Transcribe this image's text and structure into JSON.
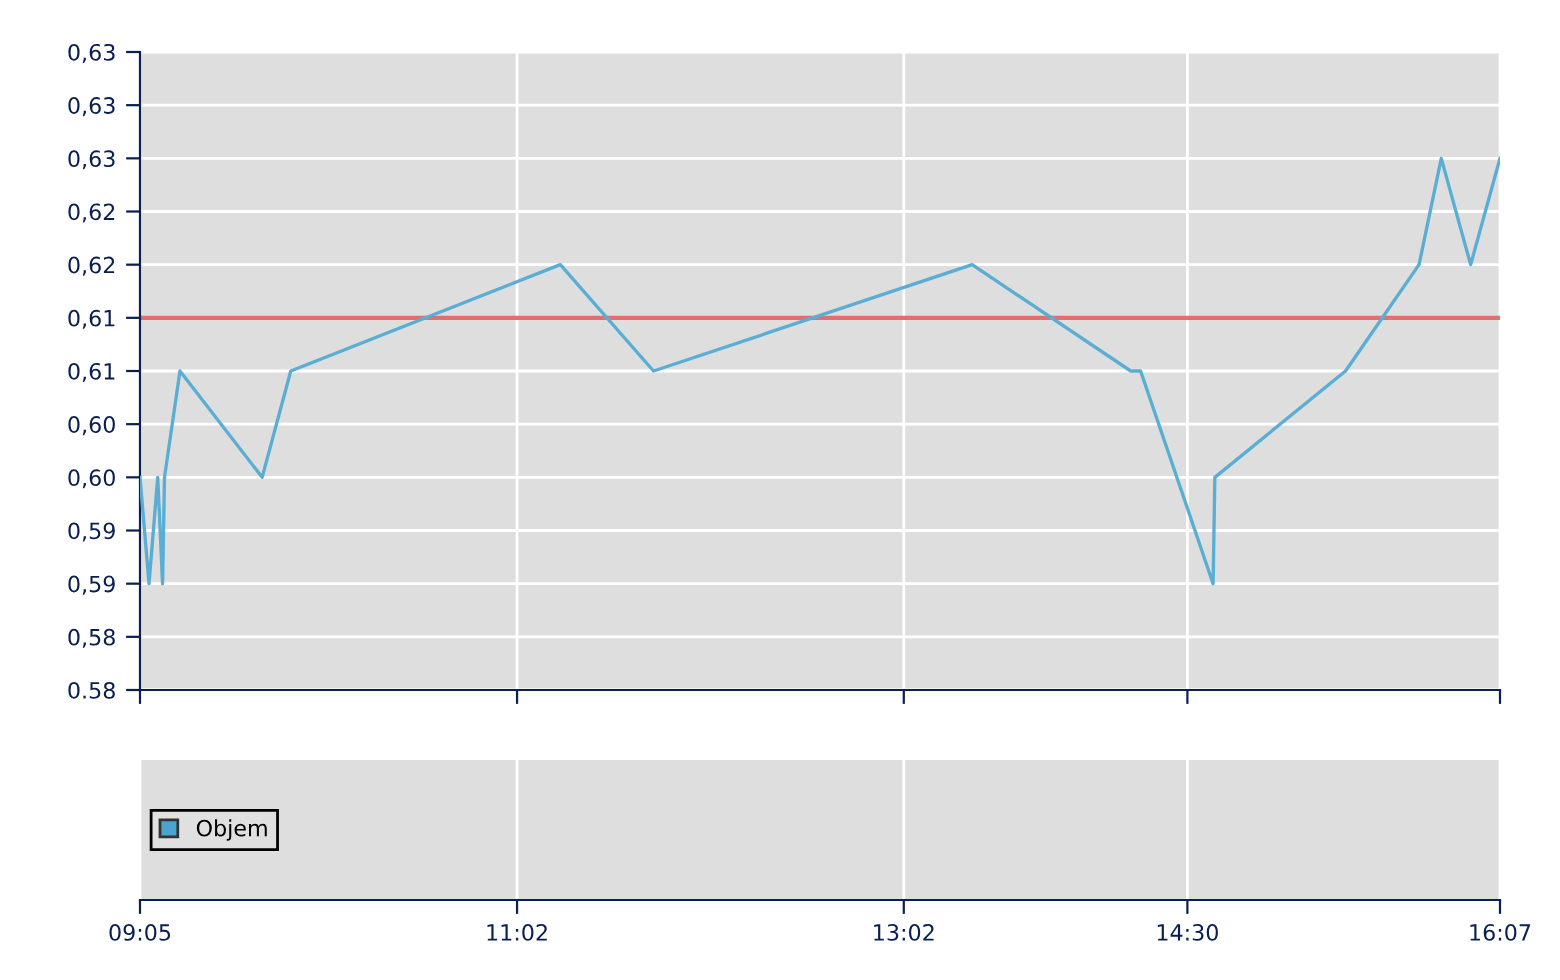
{
  "chart_data": [
    {
      "type": "line",
      "x": [
        9.0833,
        9.13,
        9.175,
        9.2,
        9.21,
        9.29,
        9.715,
        9.863,
        11.257,
        11.739,
        13.387,
        14.207,
        14.258,
        14.633,
        14.642,
        15.318,
        15.698,
        15.813,
        15.965,
        16.1167
      ],
      "series": [
        {
          "color": "#5aaed4",
          "values": [
            0.595,
            0.585,
            0.595,
            0.585,
            0.595,
            0.605,
            0.595,
            0.605,
            0.615,
            0.605,
            0.615,
            0.605,
            0.605,
            0.585,
            0.595,
            0.605,
            0.615,
            0.625,
            0.615,
            0.625
          ]
        }
      ],
      "xlim": [
        9.0833,
        16.1167
      ],
      "xticks": [
        {
          "value": 9.0833,
          "label": "09:05"
        },
        {
          "value": 11.0333,
          "label": "11:02"
        },
        {
          "value": 13.0333,
          "label": "13:02"
        },
        {
          "value": 14.5,
          "label": "14:30"
        },
        {
          "value": 16.1167,
          "label": "16:07"
        }
      ],
      "ylim": [
        0.575,
        0.635
      ],
      "yticks": [
        {
          "value": 0.575,
          "label": "0.58"
        },
        {
          "value": 0.58,
          "label": "0,58"
        },
        {
          "value": 0.585,
          "label": "0,59"
        },
        {
          "value": 0.59,
          "label": "0,59"
        },
        {
          "value": 0.595,
          "label": "0,60"
        },
        {
          "value": 0.6,
          "label": "0,60"
        },
        {
          "value": 0.605,
          "label": "0,61"
        },
        {
          "value": 0.61,
          "label": "0,61"
        },
        {
          "value": 0.615,
          "label": "0,62"
        },
        {
          "value": 0.62,
          "label": "0,62"
        },
        {
          "value": 0.625,
          "label": "0,63"
        },
        {
          "value": 0.63,
          "label": "0,63"
        },
        {
          "value": 0.635,
          "label": "0,63"
        }
      ],
      "ref_lines": [
        {
          "axis": "y",
          "value": 0.61,
          "color": "#e07070"
        }
      ],
      "grid": true,
      "tick_labels": "y",
      "marker": "none",
      "line_style": "solid"
    },
    {
      "type": "other",
      "series": [
        {
          "name": "Objem",
          "color": "#4aa3d0"
        }
      ],
      "legend": "left"
    }
  ]
}
